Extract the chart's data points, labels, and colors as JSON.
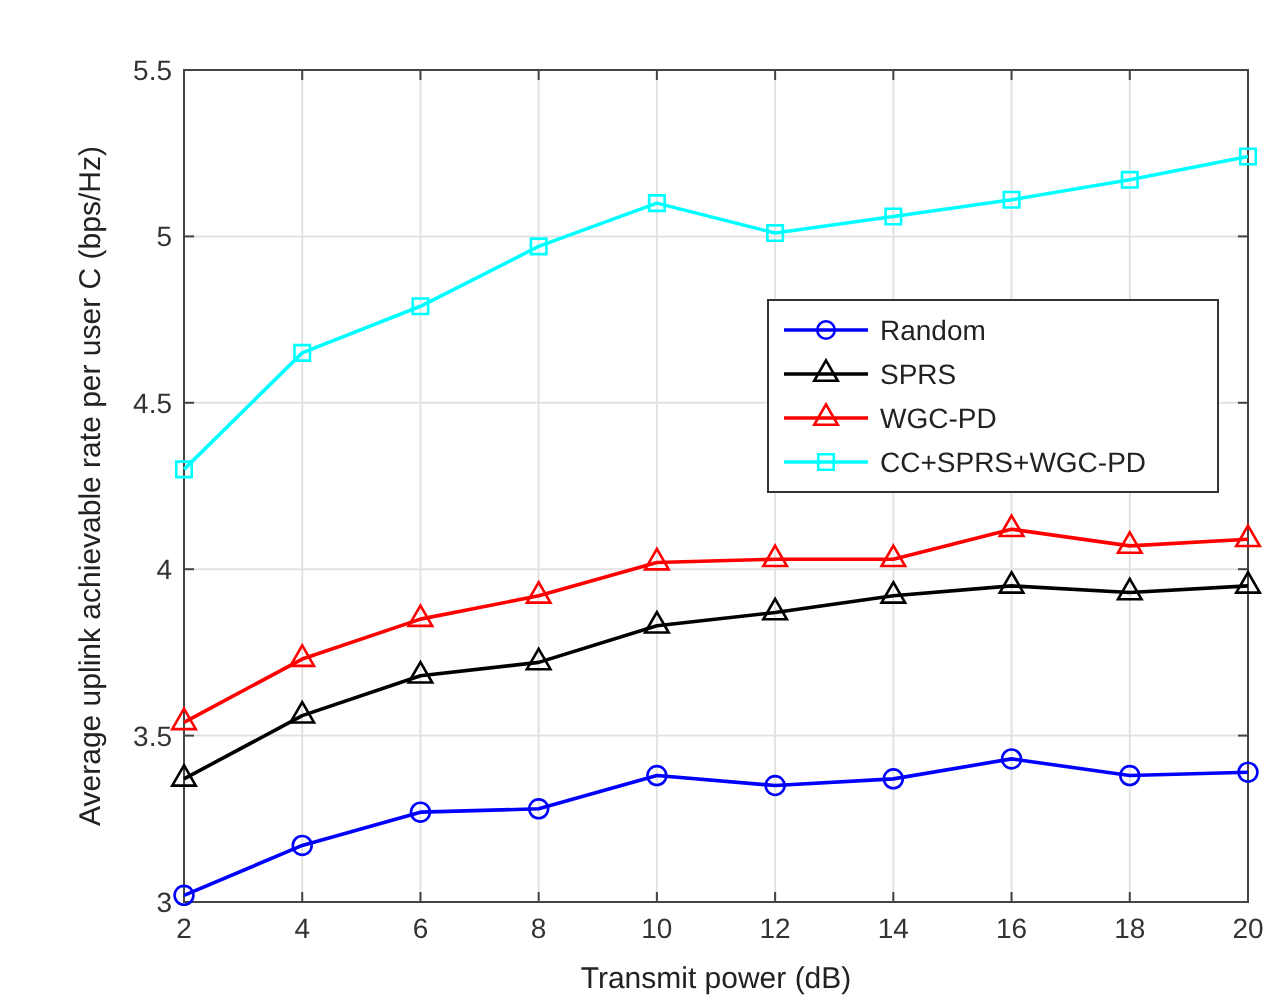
{
  "chart_data": {
    "type": "line",
    "xlabel": "Transmit power (dB)",
    "ylabel": "Average uplink achievable rate per user C (bps/Hz)",
    "x": [
      2,
      4,
      6,
      8,
      10,
      12,
      14,
      16,
      18,
      20
    ],
    "series": [
      {
        "name": "Random",
        "color": "#0000ff",
        "marker": "circle",
        "values": [
          3.02,
          3.17,
          3.27,
          3.28,
          3.38,
          3.35,
          3.37,
          3.43,
          3.38,
          3.39
        ]
      },
      {
        "name": "SPRS",
        "color": "#000000",
        "marker": "triangle",
        "values": [
          3.37,
          3.56,
          3.68,
          3.72,
          3.83,
          3.87,
          3.92,
          3.95,
          3.93,
          3.95
        ]
      },
      {
        "name": "WGC-PD",
        "color": "#ff0000",
        "marker": "triangle",
        "values": [
          3.54,
          3.73,
          3.85,
          3.92,
          4.02,
          4.03,
          4.03,
          4.12,
          4.07,
          4.09
        ]
      },
      {
        "name": "CC+SPRS+WGC-PD",
        "color": "#00ffff",
        "marker": "square",
        "values": [
          4.3,
          4.65,
          4.79,
          4.97,
          5.1,
          5.01,
          5.06,
          5.11,
          5.17,
          5.24
        ]
      }
    ],
    "xlim": [
      2,
      20
    ],
    "xticks": [
      2,
      4,
      6,
      8,
      10,
      12,
      14,
      16,
      18,
      20
    ],
    "ylim": [
      3,
      5.5
    ],
    "yticks": [
      3,
      3.5,
      4,
      4.5,
      5,
      5.5
    ],
    "grid": true,
    "legend": "right",
    "line_style": "solid"
  }
}
